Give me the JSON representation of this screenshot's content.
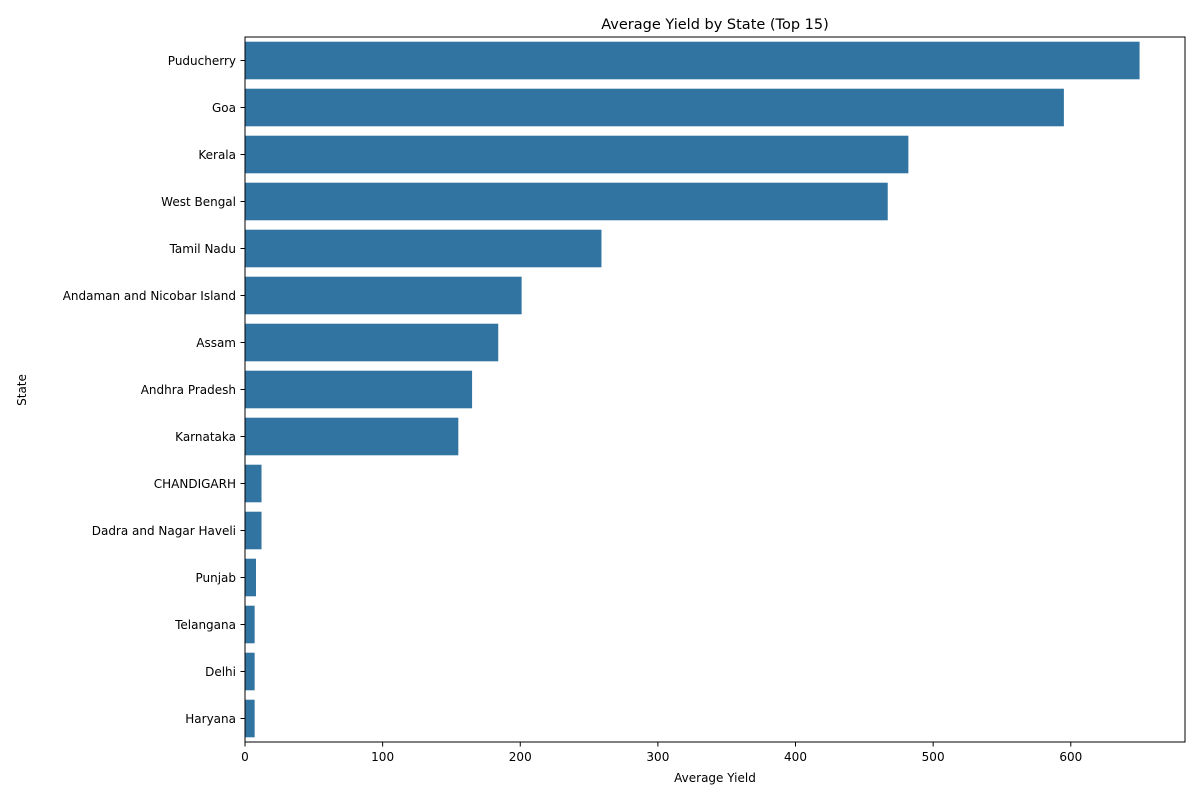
{
  "chart_data": {
    "type": "bar",
    "orientation": "horizontal",
    "title": "Average Yield by State (Top 15)",
    "xlabel": "Average Yield",
    "ylabel": "State",
    "categories": [
      "Puducherry",
      "Goa",
      "Kerala",
      "West Bengal",
      "Tamil Nadu",
      "Andaman and Nicobar Island",
      "Assam",
      "Andhra Pradesh",
      "Karnataka",
      "CHANDIGARH",
      "Dadra and Nagar Haveli",
      "Punjab",
      "Telangana",
      "Delhi",
      "Haryana"
    ],
    "values": [
      650,
      595,
      482,
      467,
      259,
      201,
      184,
      165,
      155,
      12,
      12,
      8,
      7,
      7,
      7
    ],
    "xlim": [
      0,
      683
    ],
    "xticks": [
      0,
      100,
      200,
      300,
      400,
      500,
      600
    ],
    "grid": false,
    "bar_color": "#3274a1"
  }
}
